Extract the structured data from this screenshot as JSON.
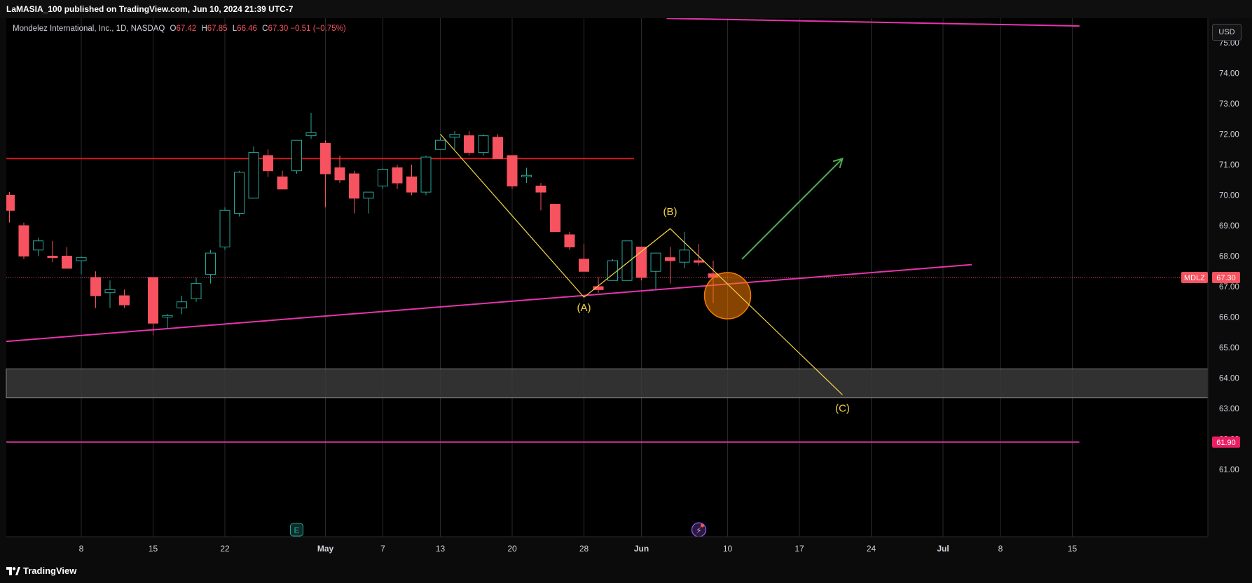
{
  "header": {
    "publish_note": "LaMASIA_100 published on TradingView.com, Jun 10, 2024 21:39 UTC-7"
  },
  "legend": {
    "title": "Mondelez International, Inc., 1D, NASDAQ",
    "open_label": "O",
    "open": "67.42",
    "high_label": "H",
    "high": "67.85",
    "low_label": "L",
    "low": "66.46",
    "close_label": "C",
    "close": "67.30",
    "change": "−0.51 (−0.75%)"
  },
  "currency_button": "USD",
  "footer": {
    "brand": "TradingView"
  },
  "colors": {
    "up": "#26a69a",
    "down": "#f7525f",
    "trendline": "#e535ab",
    "resistance": "#e0181f",
    "wave": "#f5d547",
    "arrow": "#4caf50",
    "circle": "#f57c00",
    "zone": "#3a3a3a"
  },
  "chart_data": {
    "type": "candlestick",
    "symbol": "MDLZ",
    "timeframe": "1D",
    "exchange": "NASDAQ",
    "y_axis": {
      "range": [
        60.8,
        75.4
      ],
      "ticks": [
        "75.00",
        "74.00",
        "73.00",
        "72.00",
        "71.00",
        "70.00",
        "69.00",
        "68.00",
        "67.00",
        "66.00",
        "65.00",
        "64.00",
        "63.00",
        "62.00",
        "61.00"
      ]
    },
    "x_axis": {
      "ticks": [
        {
          "label": "8",
          "day": 5
        },
        {
          "label": "15",
          "day": 10
        },
        {
          "label": "22",
          "day": 15
        },
        {
          "label": "May",
          "day": 22
        },
        {
          "label": "7",
          "day": 26
        },
        {
          "label": "13",
          "day": 30
        },
        {
          "label": "20",
          "day": 35
        },
        {
          "label": "28",
          "day": 40
        },
        {
          "label": "Jun",
          "day": 44
        },
        {
          "label": "10",
          "day": 50
        },
        {
          "label": "17",
          "day": 55
        },
        {
          "label": "24",
          "day": 60
        },
        {
          "label": "Jul",
          "day": 65
        },
        {
          "label": "8",
          "day": 69
        },
        {
          "label": "15",
          "day": 74
        }
      ]
    },
    "candles": [
      {
        "d": 0,
        "o": 70.0,
        "h": 70.1,
        "l": 69.1,
        "c": 69.5
      },
      {
        "d": 1,
        "o": 69.0,
        "h": 69.1,
        "l": 67.9,
        "c": 68.0
      },
      {
        "d": 2,
        "o": 68.2,
        "h": 68.6,
        "l": 68.0,
        "c": 68.5
      },
      {
        "d": 3,
        "o": 68.0,
        "h": 68.5,
        "l": 67.8,
        "c": 67.95
      },
      {
        "d": 4,
        "o": 68.0,
        "h": 68.3,
        "l": 67.6,
        "c": 67.6
      },
      {
        "d": 5,
        "o": 67.85,
        "h": 68.0,
        "l": 67.4,
        "c": 67.95
      },
      {
        "d": 6,
        "o": 67.3,
        "h": 67.5,
        "l": 66.3,
        "c": 66.7
      },
      {
        "d": 7,
        "o": 66.8,
        "h": 67.2,
        "l": 66.3,
        "c": 66.9
      },
      {
        "d": 8,
        "o": 66.7,
        "h": 66.9,
        "l": 66.3,
        "c": 66.4
      },
      {
        "d": 10,
        "o": 67.3,
        "h": 67.3,
        "l": 65.4,
        "c": 65.8
      },
      {
        "d": 11,
        "o": 66.0,
        "h": 66.1,
        "l": 65.6,
        "c": 66.05
      },
      {
        "d": 12,
        "o": 66.3,
        "h": 66.7,
        "l": 66.1,
        "c": 66.5
      },
      {
        "d": 13,
        "o": 66.6,
        "h": 67.3,
        "l": 66.5,
        "c": 67.1
      },
      {
        "d": 14,
        "o": 67.4,
        "h": 68.2,
        "l": 67.1,
        "c": 68.1
      },
      {
        "d": 15,
        "o": 68.3,
        "h": 69.6,
        "l": 68.2,
        "c": 69.5
      },
      {
        "d": 16,
        "o": 69.4,
        "h": 70.8,
        "l": 69.3,
        "c": 70.75
      },
      {
        "d": 17,
        "o": 69.9,
        "h": 71.6,
        "l": 69.9,
        "c": 71.4
      },
      {
        "d": 18,
        "o": 71.3,
        "h": 71.5,
        "l": 70.6,
        "c": 70.8
      },
      {
        "d": 19,
        "o": 70.6,
        "h": 70.8,
        "l": 70.2,
        "c": 70.2
      },
      {
        "d": 20,
        "o": 70.8,
        "h": 71.8,
        "l": 70.7,
        "c": 71.8
      },
      {
        "d": 21,
        "o": 71.95,
        "h": 72.7,
        "l": 71.85,
        "c": 72.05
      },
      {
        "d": 22,
        "o": 71.7,
        "h": 71.8,
        "l": 69.6,
        "c": 70.7
      },
      {
        "d": 23,
        "o": 70.9,
        "h": 71.3,
        "l": 70.4,
        "c": 70.5
      },
      {
        "d": 24,
        "o": 70.7,
        "h": 70.8,
        "l": 69.4,
        "c": 69.9
      },
      {
        "d": 25,
        "o": 69.9,
        "h": 70.1,
        "l": 69.4,
        "c": 70.1
      },
      {
        "d": 26,
        "o": 70.3,
        "h": 70.9,
        "l": 70.2,
        "c": 70.85
      },
      {
        "d": 27,
        "o": 70.9,
        "h": 71.0,
        "l": 70.2,
        "c": 70.4
      },
      {
        "d": 28,
        "o": 70.6,
        "h": 71.0,
        "l": 70.0,
        "c": 70.1
      },
      {
        "d": 29,
        "o": 70.1,
        "h": 71.3,
        "l": 70.0,
        "c": 71.25
      },
      {
        "d": 30,
        "o": 71.5,
        "h": 71.9,
        "l": 71.5,
        "c": 71.8
      },
      {
        "d": 31,
        "o": 71.9,
        "h": 72.1,
        "l": 71.5,
        "c": 72.0
      },
      {
        "d": 32,
        "o": 71.95,
        "h": 72.1,
        "l": 71.3,
        "c": 71.4
      },
      {
        "d": 33,
        "o": 71.4,
        "h": 72.0,
        "l": 71.3,
        "c": 71.95
      },
      {
        "d": 34,
        "o": 71.9,
        "h": 72.0,
        "l": 71.2,
        "c": 71.2
      },
      {
        "d": 35,
        "o": 71.3,
        "h": 71.3,
        "l": 70.2,
        "c": 70.3
      },
      {
        "d": 36,
        "o": 70.6,
        "h": 70.9,
        "l": 70.4,
        "c": 70.65
      },
      {
        "d": 37,
        "o": 70.3,
        "h": 70.4,
        "l": 69.5,
        "c": 70.1
      },
      {
        "d": 38,
        "o": 69.7,
        "h": 69.7,
        "l": 68.8,
        "c": 68.8
      },
      {
        "d": 39,
        "o": 68.7,
        "h": 68.8,
        "l": 68.2,
        "c": 68.3
      },
      {
        "d": 40,
        "o": 67.9,
        "h": 68.4,
        "l": 67.5,
        "c": 67.5
      },
      {
        "d": 41,
        "o": 67.0,
        "h": 67.3,
        "l": 66.8,
        "c": 66.9
      },
      {
        "d": 42,
        "o": 67.2,
        "h": 67.9,
        "l": 67.2,
        "c": 67.85
      },
      {
        "d": 43,
        "o": 67.2,
        "h": 68.5,
        "l": 67.2,
        "c": 68.5
      },
      {
        "d": 44,
        "o": 68.3,
        "h": 68.3,
        "l": 67.2,
        "c": 67.3
      },
      {
        "d": 45,
        "o": 67.5,
        "h": 68.1,
        "l": 66.9,
        "c": 68.1
      },
      {
        "d": 46,
        "o": 67.95,
        "h": 68.3,
        "l": 67.1,
        "c": 67.85
      },
      {
        "d": 47,
        "o": 67.8,
        "h": 68.8,
        "l": 67.6,
        "c": 68.2
      },
      {
        "d": 48,
        "o": 67.85,
        "h": 68.4,
        "l": 67.7,
        "c": 67.8
      },
      {
        "d": 49,
        "o": 67.42,
        "h": 67.85,
        "l": 66.46,
        "c": 67.3
      }
    ],
    "horizontal_lines": [
      {
        "name": "resistance",
        "price": 71.2,
        "from_day": 0,
        "to_day": 43
      },
      {
        "name": "support",
        "price": 61.9,
        "from_day": 0,
        "to_day": 74
      }
    ],
    "zone": {
      "top": 64.3,
      "bottom": 63.35
    },
    "trendlines": [
      {
        "name": "rising-support",
        "from": {
          "day": 0,
          "price": 65.2
        },
        "to": {
          "day": 67,
          "price": 67.72
        }
      },
      {
        "name": "upper-line",
        "from": {
          "day": 46,
          "price": 75.8
        },
        "to": {
          "day": 74.5,
          "price": 75.55
        }
      }
    ],
    "wave_path": [
      {
        "day": 30,
        "price": 72.0
      },
      {
        "day": 40,
        "price": 66.65
      },
      {
        "day": 46,
        "price": 68.9
      },
      {
        "day": 58,
        "price": 63.45
      }
    ],
    "wave_labels": [
      {
        "text": "(A)",
        "day": 40,
        "price": 66.2
      },
      {
        "text": "(B)",
        "day": 46,
        "price": 69.35
      },
      {
        "text": "(C)",
        "day": 58,
        "price": 62.9
      }
    ],
    "projection_arrow": {
      "from": {
        "day": 51,
        "price": 67.9
      },
      "to": {
        "day": 58,
        "price": 71.2
      }
    },
    "highlight_circle": {
      "day": 50,
      "price": 66.7
    },
    "price_labels": [
      {
        "name": "MDLZ",
        "text": "67.30",
        "price": 67.3
      },
      {
        "name": "support",
        "text": "61.90",
        "price": 61.9
      }
    ],
    "markers": [
      {
        "name": "earnings-marker",
        "text": "E",
        "day": 20
      },
      {
        "name": "event-marker",
        "text": "⚡",
        "day": 48
      }
    ]
  }
}
